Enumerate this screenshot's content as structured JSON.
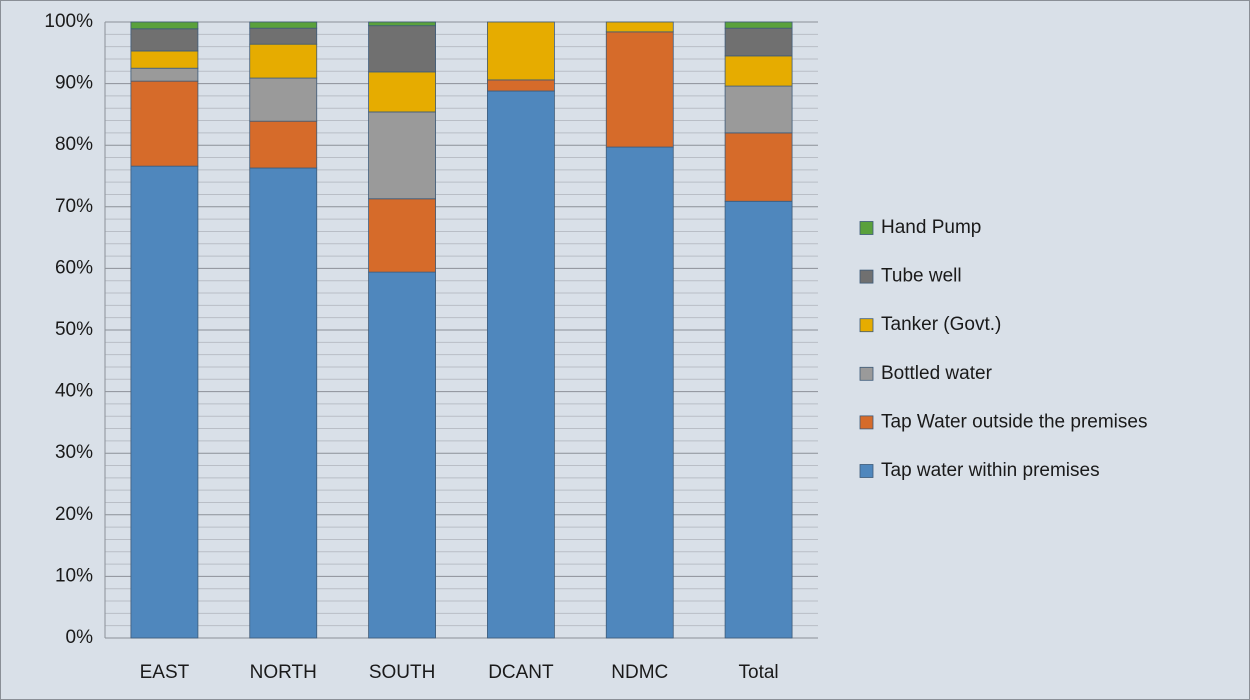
{
  "chart_data": {
    "type": "stacked_bar",
    "categories": [
      "EAST",
      "NORTH",
      "SOUTH",
      "DCANT",
      "NDMC",
      "Total"
    ],
    "series": [
      {
        "name": "Tap water within premises",
        "color": "#4f87bd",
        "values": [
          76.6,
          76.3,
          59.4,
          88.8,
          79.7,
          70.9
        ]
      },
      {
        "name": "Tap Water outside the premises",
        "color": "#d66b2a",
        "values": [
          13.8,
          7.6,
          11.9,
          1.8,
          18.7,
          11.1
        ]
      },
      {
        "name": "Bottled water",
        "color": "#9a9a9a",
        "values": [
          2.1,
          7.0,
          14.1,
          0,
          0,
          7.6
        ]
      },
      {
        "name": "Tanker (Govt.)",
        "color": "#e6ac00",
        "values": [
          2.8,
          5.5,
          6.5,
          9.4,
          1.6,
          4.9
        ]
      },
      {
        "name": "Tube well",
        "color": "#707070",
        "values": [
          3.6,
          2.6,
          7.5,
          0,
          0,
          4.5
        ]
      },
      {
        "name": "Hand Pump",
        "color": "#5aa13c",
        "values": [
          1.1,
          1.0,
          0.6,
          0,
          0,
          1.0
        ]
      }
    ],
    "ylim": [
      0,
      100
    ],
    "yticks": [
      {
        "value": 0,
        "label": "0%"
      },
      {
        "value": 10,
        "label": "10%"
      },
      {
        "value": 20,
        "label": "20%"
      },
      {
        "value": 30,
        "label": "30%"
      },
      {
        "value": 40,
        "label": "40%"
      },
      {
        "value": 50,
        "label": "50%"
      },
      {
        "value": 60,
        "label": "60%"
      },
      {
        "value": 70,
        "label": "70%"
      },
      {
        "value": 80,
        "label": "80%"
      },
      {
        "value": 90,
        "label": "90%"
      },
      {
        "value": 100,
        "label": "100%"
      }
    ],
    "minor_yticks": [
      2,
      4,
      6,
      8,
      12,
      14,
      16,
      18,
      22,
      24,
      26,
      28,
      32,
      34,
      36,
      38,
      42,
      44,
      46,
      48,
      52,
      54,
      56,
      58,
      62,
      64,
      66,
      68,
      72,
      74,
      76,
      78,
      82,
      84,
      86,
      88,
      92,
      94,
      96,
      98
    ],
    "grid": true,
    "legend": "right"
  }
}
